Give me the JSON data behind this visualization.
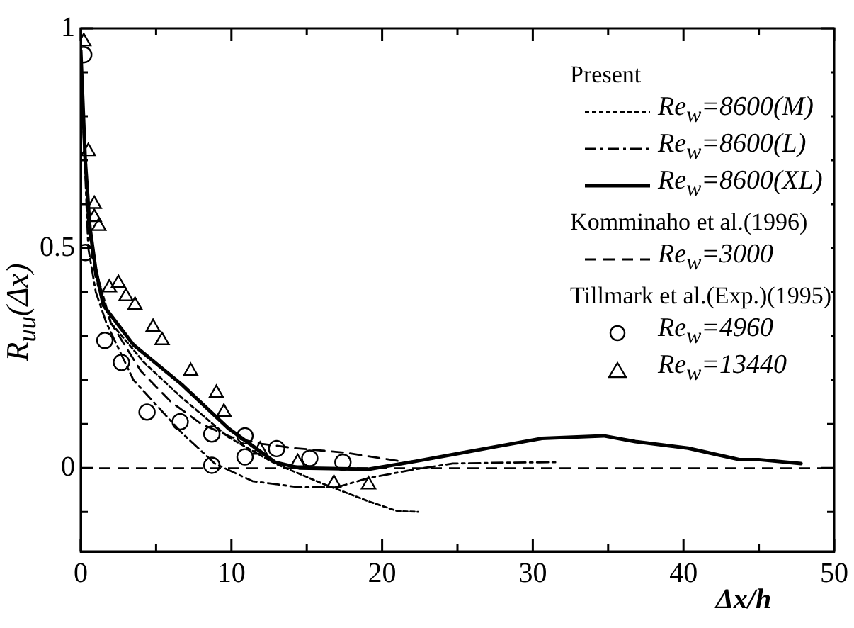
{
  "chart_data": {
    "type": "line",
    "xlabel": "Δx/h",
    "ylabel": "R$_{uu}$(Δx)",
    "xlim": [
      0,
      50
    ],
    "ylim": [
      -0.19,
      1
    ],
    "xticks": [
      0,
      {
        "value": 5,
        "label": null
      },
      10,
      {
        "value": 15,
        "label": null
      },
      20,
      {
        "value": 25,
        "label": null
      },
      30,
      {
        "value": 35,
        "label": null
      },
      40,
      {
        "value": 45,
        "label": null
      },
      50
    ],
    "yticks": [
      {
        "value": -0.1,
        "label": null
      },
      0,
      {
        "value": 0.1,
        "label": null
      },
      {
        "value": 0.2,
        "label": null
      },
      {
        "value": 0.3,
        "label": null
      },
      {
        "value": 0.4,
        "label": null
      },
      0.5,
      {
        "value": 0.6,
        "label": null
      },
      {
        "value": 0.7,
        "label": null
      },
      {
        "value": 0.8,
        "label": null
      },
      {
        "value": 0.9,
        "label": null
      },
      1
    ],
    "grid": false,
    "legend": "top right",
    "annotations": [
      "Present",
      "Komminaho et al.(1996)",
      "Tillmark et al.(Exp.)(1995)"
    ],
    "ref_lines": [
      {
        "axis": "y",
        "value": 0,
        "color": "#000000",
        "line_style": "dashed"
      }
    ],
    "series": [
      {
        "name": "Re$_{w}$=8600(M)",
        "type": "line",
        "color": "#000000",
        "line_style": "dotted",
        "x": [
          0,
          0.5,
          1,
          2,
          4.2,
          6.7,
          9.8,
          12.9,
          16,
          19.1,
          21,
          22.4
        ],
        "values": [
          0.95,
          0.55,
          0.45,
          0.33,
          0.24,
          0.16,
          0.07,
          0.01,
          -0.035,
          -0.076,
          -0.098,
          -0.1
        ]
      },
      {
        "name": "Re$_{w}$=8600(L)",
        "type": "line",
        "color": "#000000",
        "line_style": "dashdot",
        "x": [
          0,
          0.5,
          1,
          1.7,
          3.5,
          5.1,
          6.7,
          8.9,
          11.4,
          14.5,
          17,
          19.1,
          22.2,
          24.7,
          28,
          31.7
        ],
        "values": [
          0.92,
          0.5,
          0.4,
          0.33,
          0.2,
          0.14,
          0.08,
          0.01,
          -0.03,
          -0.044,
          -0.044,
          -0.023,
          -0.003,
          0.01,
          0.012,
          0.013
        ]
      },
      {
        "name": "Re$_{w}$=8600(XL)",
        "type": "line",
        "color": "#000000",
        "line_style": "solid",
        "x": [
          0,
          0.3,
          0.6,
          1,
          1.5,
          3.5,
          6.7,
          9.8,
          12.9,
          14.5,
          19.1,
          22.2,
          25.4,
          27.5,
          30.6,
          34.7,
          36.8,
          40.3,
          43.7,
          45,
          47.8
        ],
        "values": [
          0.95,
          0.7,
          0.55,
          0.45,
          0.37,
          0.28,
          0.19,
          0.09,
          0.013,
          0,
          -0.003,
          0.015,
          0.035,
          0.048,
          0.067,
          0.073,
          0.06,
          0.045,
          0.019,
          0.019,
          0.01
        ]
      },
      {
        "name": "Re$_{w}$=3000",
        "type": "line",
        "color": "#000000",
        "line_style": "dashed",
        "x": [
          0,
          0.5,
          1,
          2,
          4,
          6,
          8,
          10,
          12,
          14.2,
          17.5,
          21.6
        ],
        "values": [
          0.92,
          0.55,
          0.43,
          0.33,
          0.22,
          0.15,
          0.1,
          0.07,
          0.055,
          0.045,
          0.035,
          0.013
        ]
      },
      {
        "name": "Re$_{w}$=4960",
        "type": "scatter",
        "color": "#000000",
        "marker": "circle",
        "x": [
          0.2,
          0.3,
          1.6,
          2.7,
          4.4,
          6.6,
          8.7,
          8.7,
          10.9,
          10.9,
          13,
          15.2,
          17.4
        ],
        "values": [
          0.94,
          0.49,
          0.29,
          0.24,
          0.127,
          0.105,
          0.077,
          0.006,
          0.073,
          0.025,
          0.044,
          0.022,
          0.013
        ]
      },
      {
        "name": "Re$_{w}$=13440",
        "type": "scatter",
        "color": "#000000",
        "marker": "triangle",
        "x": [
          0.2,
          0.5,
          0.9,
          0.9,
          1.2,
          1.9,
          2.5,
          3,
          3.6,
          4.8,
          5.4,
          7.3,
          9,
          9.5,
          11.9,
          14.4,
          16.8,
          19.1
        ],
        "values": [
          0.97,
          0.72,
          0.6,
          0.57,
          0.55,
          0.41,
          0.42,
          0.39,
          0.37,
          0.32,
          0.29,
          0.22,
          0.17,
          0.127,
          0.041,
          0.013,
          -0.035,
          -0.038
        ]
      }
    ]
  }
}
